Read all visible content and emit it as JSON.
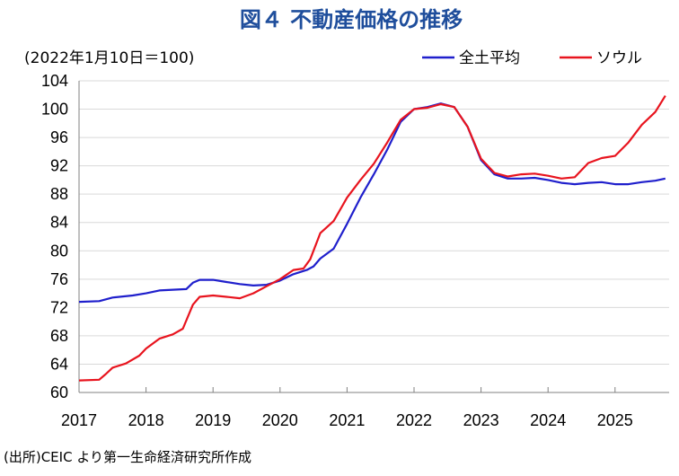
{
  "chart_data": {
    "type": "line",
    "title": "図４ 不動産価格の推移",
    "unit_label": "(2022年1月10日＝100)",
    "source": "(出所)CEIC より第一生命経済研究所作成",
    "ylim": [
      60,
      104
    ],
    "y_ticks": [
      "60",
      "64",
      "68",
      "72",
      "76",
      "80",
      "84",
      "88",
      "92",
      "96",
      "100",
      "104"
    ],
    "x_ticks": [
      "2017",
      "2018",
      "2019",
      "2020",
      "2021",
      "2022",
      "2023",
      "2024",
      "2025"
    ],
    "grid": "horizontal",
    "legend_position": "top-right",
    "series": [
      {
        "name": "全土平均",
        "color": "#1f1fcc",
        "points": [
          [
            2017.0,
            72.8
          ],
          [
            2017.3,
            72.9
          ],
          [
            2017.5,
            73.4
          ],
          [
            2017.8,
            73.7
          ],
          [
            2018.0,
            74.0
          ],
          [
            2018.2,
            74.4
          ],
          [
            2018.4,
            74.5
          ],
          [
            2018.6,
            74.6
          ],
          [
            2018.7,
            75.5
          ],
          [
            2018.8,
            75.9
          ],
          [
            2019.0,
            75.9
          ],
          [
            2019.2,
            75.6
          ],
          [
            2019.4,
            75.3
          ],
          [
            2019.6,
            75.1
          ],
          [
            2019.8,
            75.2
          ],
          [
            2020.0,
            75.8
          ],
          [
            2020.2,
            76.7
          ],
          [
            2020.4,
            77.3
          ],
          [
            2020.5,
            77.8
          ],
          [
            2020.6,
            78.9
          ],
          [
            2020.8,
            80.3
          ],
          [
            2021.0,
            83.8
          ],
          [
            2021.2,
            87.5
          ],
          [
            2021.4,
            90.8
          ],
          [
            2021.6,
            94.3
          ],
          [
            2021.8,
            98.2
          ],
          [
            2022.0,
            100.0
          ],
          [
            2022.2,
            100.3
          ],
          [
            2022.4,
            100.8
          ],
          [
            2022.6,
            100.3
          ],
          [
            2022.8,
            97.5
          ],
          [
            2023.0,
            92.8
          ],
          [
            2023.2,
            90.8
          ],
          [
            2023.4,
            90.2
          ],
          [
            2023.6,
            90.2
          ],
          [
            2023.8,
            90.3
          ],
          [
            2024.0,
            90.0
          ],
          [
            2024.2,
            89.6
          ],
          [
            2024.4,
            89.4
          ],
          [
            2024.6,
            89.6
          ],
          [
            2024.8,
            89.7
          ],
          [
            2025.0,
            89.4
          ],
          [
            2025.2,
            89.4
          ],
          [
            2025.4,
            89.7
          ],
          [
            2025.6,
            89.9
          ],
          [
            2025.75,
            90.2
          ]
        ]
      },
      {
        "name": "ソウル",
        "color": "#e8141e",
        "points": [
          [
            2017.0,
            61.7
          ],
          [
            2017.3,
            61.8
          ],
          [
            2017.4,
            62.6
          ],
          [
            2017.5,
            63.5
          ],
          [
            2017.7,
            64.1
          ],
          [
            2017.9,
            65.2
          ],
          [
            2018.0,
            66.2
          ],
          [
            2018.2,
            67.6
          ],
          [
            2018.4,
            68.2
          ],
          [
            2018.55,
            69.0
          ],
          [
            2018.7,
            72.4
          ],
          [
            2018.8,
            73.5
          ],
          [
            2019.0,
            73.7
          ],
          [
            2019.2,
            73.5
          ],
          [
            2019.4,
            73.3
          ],
          [
            2019.6,
            74.0
          ],
          [
            2019.8,
            75.0
          ],
          [
            2020.0,
            76.0
          ],
          [
            2020.2,
            77.3
          ],
          [
            2020.35,
            77.5
          ],
          [
            2020.45,
            78.8
          ],
          [
            2020.6,
            82.5
          ],
          [
            2020.8,
            84.2
          ],
          [
            2021.0,
            87.5
          ],
          [
            2021.2,
            90.0
          ],
          [
            2021.4,
            92.3
          ],
          [
            2021.6,
            95.3
          ],
          [
            2021.8,
            98.5
          ],
          [
            2022.0,
            100.0
          ],
          [
            2022.2,
            100.2
          ],
          [
            2022.4,
            100.7
          ],
          [
            2022.6,
            100.3
          ],
          [
            2022.8,
            97.5
          ],
          [
            2023.0,
            93.0
          ],
          [
            2023.2,
            91.0
          ],
          [
            2023.4,
            90.5
          ],
          [
            2023.6,
            90.8
          ],
          [
            2023.8,
            90.9
          ],
          [
            2024.0,
            90.6
          ],
          [
            2024.2,
            90.2
          ],
          [
            2024.4,
            90.4
          ],
          [
            2024.6,
            92.4
          ],
          [
            2024.8,
            93.1
          ],
          [
            2025.0,
            93.4
          ],
          [
            2025.2,
            95.3
          ],
          [
            2025.4,
            97.8
          ],
          [
            2025.6,
            99.6
          ],
          [
            2025.75,
            101.9
          ]
        ]
      }
    ]
  }
}
